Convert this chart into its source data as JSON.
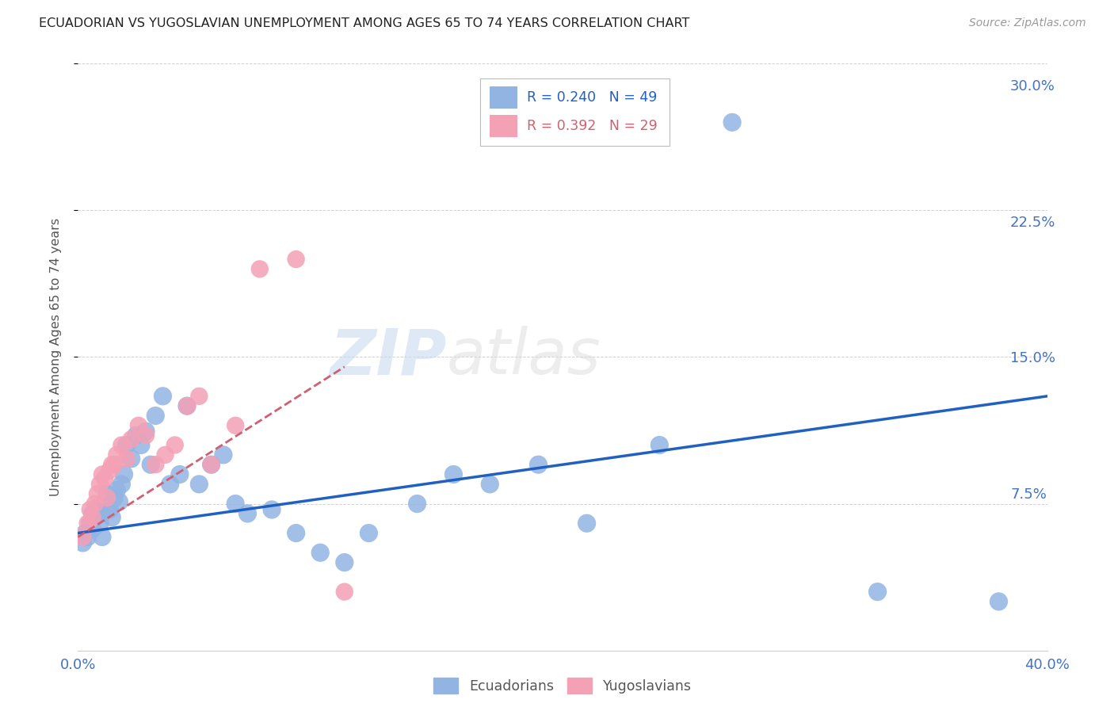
{
  "title": "ECUADORIAN VS YUGOSLAVIAN UNEMPLOYMENT AMONG AGES 65 TO 74 YEARS CORRELATION CHART",
  "source": "Source: ZipAtlas.com",
  "ylabel": "Unemployment Among Ages 65 to 74 years",
  "xlim": [
    0.0,
    0.4
  ],
  "ylim": [
    0.0,
    0.3
  ],
  "xticks": [
    0.0,
    0.08,
    0.16,
    0.24,
    0.32,
    0.4
  ],
  "yticks": [
    0.075,
    0.15,
    0.225,
    0.3
  ],
  "ytick_labels": [
    "7.5%",
    "15.0%",
    "22.5%",
    "30.0%"
  ],
  "xtick_labels": [
    "0.0%",
    "",
    "",
    "",
    "",
    "40.0%"
  ],
  "blue_R": 0.24,
  "blue_N": 49,
  "pink_R": 0.392,
  "pink_N": 29,
  "blue_color": "#92b4e3",
  "pink_color": "#f4a0b5",
  "line_blue_color": "#2060c0",
  "line_pink_color": "#d06070",
  "axis_label_color": "#4472c4",
  "blue_scatter_x": [
    0.002,
    0.003,
    0.004,
    0.005,
    0.006,
    0.006,
    0.007,
    0.008,
    0.009,
    0.01,
    0.011,
    0.012,
    0.013,
    0.014,
    0.015,
    0.016,
    0.017,
    0.018,
    0.019,
    0.02,
    0.022,
    0.024,
    0.026,
    0.028,
    0.03,
    0.032,
    0.035,
    0.038,
    0.042,
    0.045,
    0.05,
    0.055,
    0.06,
    0.065,
    0.07,
    0.08,
    0.09,
    0.1,
    0.11,
    0.12,
    0.14,
    0.155,
    0.17,
    0.19,
    0.21,
    0.24,
    0.27,
    0.33,
    0.38
  ],
  "blue_scatter_y": [
    0.055,
    0.06,
    0.058,
    0.065,
    0.062,
    0.07,
    0.068,
    0.072,
    0.065,
    0.058,
    0.075,
    0.08,
    0.072,
    0.068,
    0.078,
    0.082,
    0.076,
    0.085,
    0.09,
    0.105,
    0.098,
    0.11,
    0.105,
    0.112,
    0.095,
    0.12,
    0.13,
    0.085,
    0.09,
    0.125,
    0.085,
    0.095,
    0.1,
    0.075,
    0.07,
    0.072,
    0.06,
    0.05,
    0.045,
    0.06,
    0.075,
    0.09,
    0.085,
    0.095,
    0.065,
    0.105,
    0.27,
    0.03,
    0.025
  ],
  "pink_scatter_x": [
    0.002,
    0.004,
    0.005,
    0.006,
    0.007,
    0.008,
    0.009,
    0.01,
    0.011,
    0.012,
    0.013,
    0.014,
    0.015,
    0.016,
    0.018,
    0.02,
    0.022,
    0.025,
    0.028,
    0.032,
    0.036,
    0.04,
    0.045,
    0.05,
    0.055,
    0.065,
    0.075,
    0.09,
    0.11
  ],
  "pink_scatter_y": [
    0.058,
    0.065,
    0.072,
    0.068,
    0.075,
    0.08,
    0.085,
    0.09,
    0.088,
    0.078,
    0.092,
    0.095,
    0.095,
    0.1,
    0.105,
    0.098,
    0.108,
    0.115,
    0.11,
    0.095,
    0.1,
    0.105,
    0.125,
    0.13,
    0.095,
    0.115,
    0.195,
    0.2,
    0.03
  ],
  "blue_line_x": [
    0.0,
    0.4
  ],
  "blue_line_y": [
    0.06,
    0.13
  ],
  "pink_line_x": [
    0.0,
    0.11
  ],
  "pink_line_y": [
    0.058,
    0.145
  ]
}
